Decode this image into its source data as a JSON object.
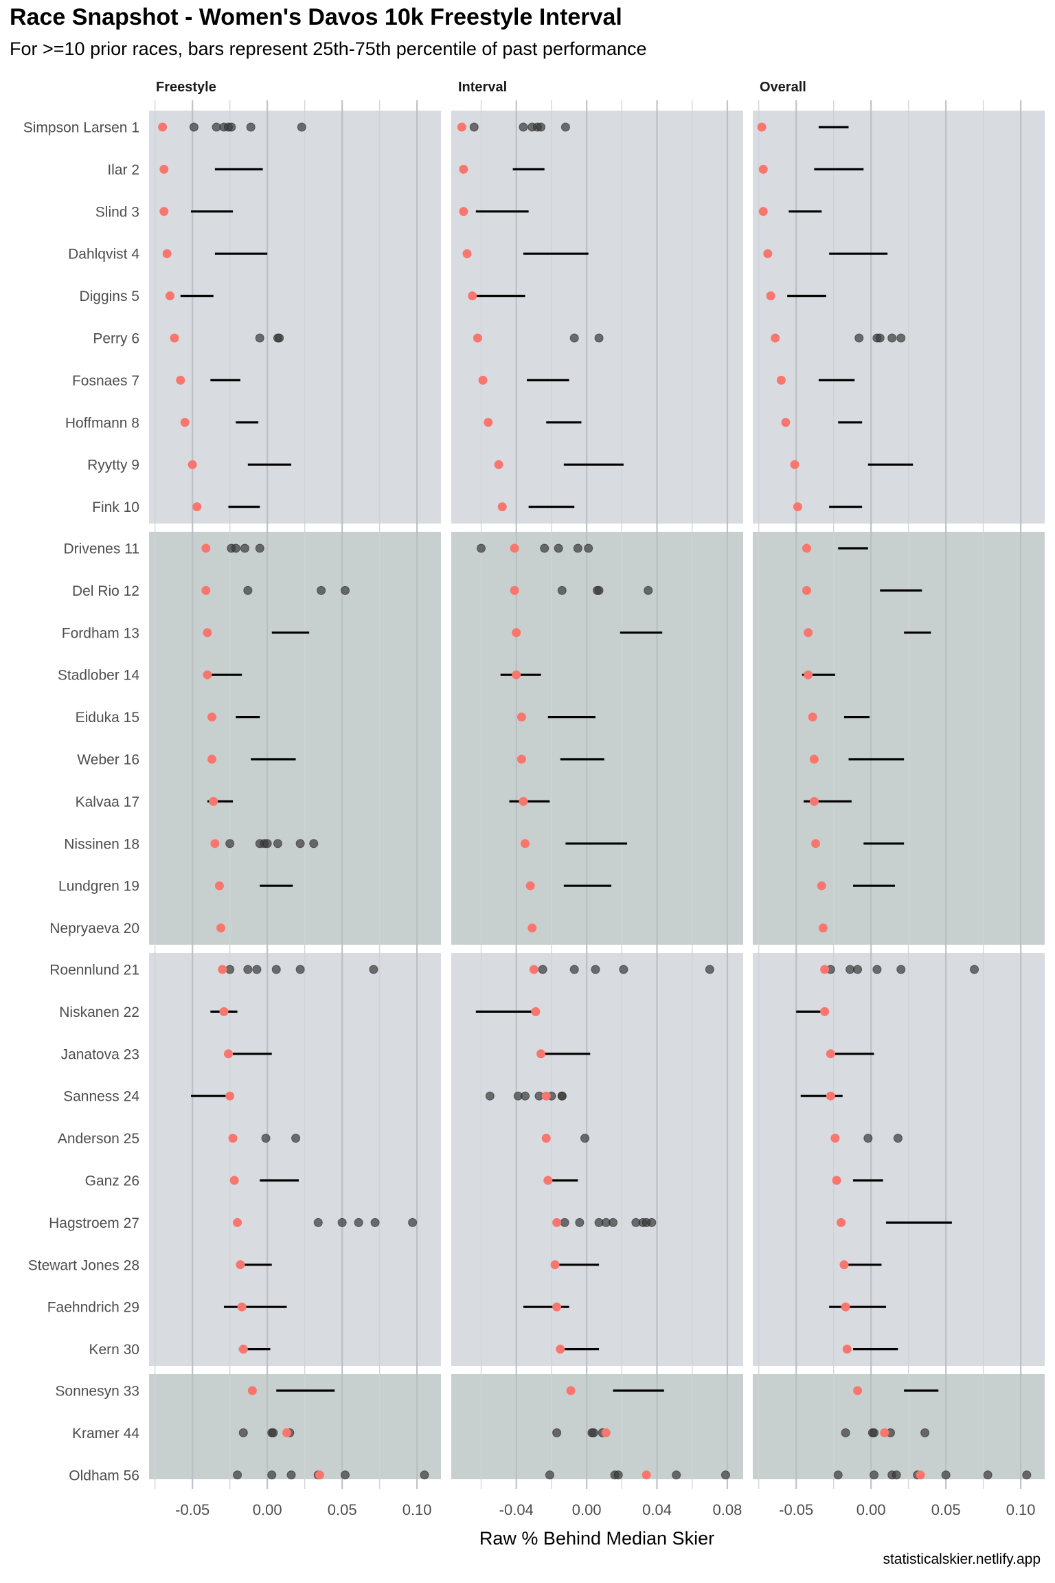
{
  "chart_data": {
    "type": "scatter",
    "title": "Race Snapshot -  Women's Davos 10k Freestyle Interval",
    "subtitle": "For >=10 prior races, bars represent 25th-75th percentile of past performance",
    "xlabel": "Raw % Behind Median Skier",
    "caption": "statisticalskier.netlify.app",
    "colors": {
      "current_point": "#F8766D",
      "past_point": "#3b3b3b",
      "iqr_bar": "#000000",
      "band_light": "#d8dbe0",
      "band_dark": "#c8d0cf"
    },
    "panels": [
      {
        "key": "freestyle",
        "label": "Freestyle",
        "xlim": [
          -0.079,
          0.116
        ],
        "ticks": [
          -0.05,
          0.0,
          0.05,
          0.1
        ],
        "tick_labels": [
          "-0.05",
          "0.00",
          "0.05",
          "0.10"
        ]
      },
      {
        "key": "interval",
        "label": "Interval",
        "xlim": [
          -0.077,
          0.089
        ],
        "ticks": [
          -0.04,
          0.0,
          0.04,
          0.08
        ],
        "tick_labels": [
          "-0.04",
          "0.00",
          "0.04",
          "0.08"
        ]
      },
      {
        "key": "overall",
        "label": "Overall",
        "xlim": [
          -0.079,
          0.116
        ],
        "ticks": [
          -0.05,
          0.0,
          0.05,
          0.1
        ],
        "tick_labels": [
          "-0.05",
          "0.00",
          "0.05",
          "0.10"
        ]
      }
    ],
    "groups": [
      {
        "shade": "light",
        "rows": [
          0,
          1,
          2,
          3,
          4,
          5,
          6,
          7,
          8,
          9
        ]
      },
      {
        "shade": "dark",
        "rows": [
          10,
          11,
          12,
          13,
          14,
          15,
          16,
          17,
          18,
          19
        ]
      },
      {
        "shade": "light",
        "rows": [
          20,
          21,
          22,
          23,
          24,
          25,
          26,
          27,
          28,
          29
        ]
      },
      {
        "shade": "dark",
        "rows": [
          30,
          31,
          32
        ]
      }
    ],
    "skiers": [
      {
        "label": "Simpson Larsen 1",
        "freestyle": {
          "current": -0.07,
          "past": [
            -0.049,
            -0.034,
            -0.029,
            -0.026,
            -0.024,
            -0.011,
            0.023
          ]
        },
        "interval": {
          "current": -0.071,
          "past": [
            -0.064,
            -0.036,
            -0.031,
            -0.028,
            -0.026,
            -0.012
          ]
        },
        "overall": {
          "current": -0.073,
          "iqr": [
            -0.035,
            -0.015
          ]
        }
      },
      {
        "label": "Ilar 2",
        "freestyle": {
          "current": -0.069,
          "iqr": [
            -0.035,
            -0.003
          ]
        },
        "interval": {
          "current": -0.07,
          "iqr": [
            -0.042,
            -0.024
          ]
        },
        "overall": {
          "current": -0.072,
          "iqr": [
            -0.038,
            -0.005
          ]
        }
      },
      {
        "label": "Slind 3",
        "freestyle": {
          "current": -0.069,
          "iqr": [
            -0.051,
            -0.023
          ]
        },
        "interval": {
          "current": -0.07,
          "iqr": [
            -0.063,
            -0.033
          ]
        },
        "overall": {
          "current": -0.072,
          "iqr": [
            -0.055,
            -0.033
          ]
        }
      },
      {
        "label": "Dahlqvist 4",
        "freestyle": {
          "current": -0.067,
          "iqr": [
            -0.035,
            0.0
          ]
        },
        "interval": {
          "current": -0.068,
          "iqr": [
            -0.036,
            0.001
          ]
        },
        "overall": {
          "current": -0.069,
          "iqr": [
            -0.028,
            0.011
          ]
        }
      },
      {
        "label": "Diggins 5",
        "freestyle": {
          "current": -0.065,
          "iqr": [
            -0.058,
            -0.036
          ]
        },
        "interval": {
          "current": -0.065,
          "iqr": [
            -0.063,
            -0.035
          ]
        },
        "overall": {
          "current": -0.067,
          "iqr": [
            -0.056,
            -0.03
          ]
        }
      },
      {
        "label": "Perry 6",
        "freestyle": {
          "current": -0.062,
          "past": [
            -0.005,
            0.007,
            0.008
          ]
        },
        "interval": {
          "current": -0.062,
          "past": [
            -0.007,
            0.007
          ]
        },
        "overall": {
          "current": -0.064,
          "past": [
            -0.008,
            0.004,
            0.006,
            0.014,
            0.02
          ]
        }
      },
      {
        "label": "Fosnaes 7",
        "freestyle": {
          "current": -0.058,
          "iqr": [
            -0.038,
            -0.018
          ]
        },
        "interval": {
          "current": -0.059,
          "iqr": [
            -0.034,
            -0.01
          ]
        },
        "overall": {
          "current": -0.06,
          "iqr": [
            -0.035,
            -0.011
          ]
        }
      },
      {
        "label": "Hoffmann 8",
        "freestyle": {
          "current": -0.055,
          "iqr": [
            -0.021,
            -0.006
          ]
        },
        "interval": {
          "current": -0.056,
          "iqr": [
            -0.023,
            -0.003
          ]
        },
        "overall": {
          "current": -0.057,
          "iqr": [
            -0.022,
            -0.006
          ]
        }
      },
      {
        "label": "Ryytty 9",
        "freestyle": {
          "current": -0.05,
          "iqr": [
            -0.013,
            0.016
          ]
        },
        "interval": {
          "current": -0.05,
          "iqr": [
            -0.013,
            0.021
          ]
        },
        "overall": {
          "current": -0.051,
          "iqr": [
            -0.002,
            0.028
          ]
        }
      },
      {
        "label": "Fink 10",
        "freestyle": {
          "current": -0.047,
          "iqr": [
            -0.026,
            -0.005
          ]
        },
        "interval": {
          "current": -0.048,
          "iqr": [
            -0.033,
            -0.007
          ]
        },
        "overall": {
          "current": -0.049,
          "iqr": [
            -0.028,
            -0.006
          ]
        }
      },
      {
        "label": "Drivenes 11",
        "freestyle": {
          "current": -0.041,
          "past": [
            -0.024,
            -0.021,
            -0.015,
            -0.005
          ]
        },
        "interval": {
          "current": -0.041,
          "past": [
            -0.06,
            -0.024,
            -0.016,
            -0.005,
            0.001
          ]
        },
        "overall": {
          "current": -0.043,
          "iqr": [
            -0.022,
            -0.002
          ]
        }
      },
      {
        "label": "Del Rio 12",
        "freestyle": {
          "current": -0.041,
          "past": [
            -0.013,
            0.036,
            0.052
          ]
        },
        "interval": {
          "current": -0.041,
          "past": [
            -0.014,
            0.006,
            0.007,
            0.035
          ]
        },
        "overall": {
          "current": -0.043,
          "iqr": [
            0.006,
            0.034
          ]
        }
      },
      {
        "label": "Fordham 13",
        "freestyle": {
          "current": -0.04,
          "iqr": [
            0.003,
            0.028
          ]
        },
        "interval": {
          "current": -0.04,
          "iqr": [
            0.019,
            0.043
          ]
        },
        "overall": {
          "current": -0.042,
          "iqr": [
            0.022,
            0.04
          ]
        }
      },
      {
        "label": "Stadlober 14",
        "freestyle": {
          "current": -0.04,
          "iqr": [
            -0.039,
            -0.017
          ]
        },
        "interval": {
          "current": -0.04,
          "iqr": [
            -0.049,
            -0.026
          ]
        },
        "overall": {
          "current": -0.042,
          "iqr": [
            -0.046,
            -0.024
          ]
        }
      },
      {
        "label": "Eiduka 15",
        "freestyle": {
          "current": -0.037,
          "iqr": [
            -0.021,
            -0.005
          ]
        },
        "interval": {
          "current": -0.037,
          "iqr": [
            -0.022,
            0.005
          ]
        },
        "overall": {
          "current": -0.039,
          "iqr": [
            -0.018,
            -0.001
          ]
        }
      },
      {
        "label": "Weber 16",
        "freestyle": {
          "current": -0.037,
          "iqr": [
            -0.011,
            0.019
          ]
        },
        "interval": {
          "current": -0.037,
          "iqr": [
            -0.015,
            0.01
          ]
        },
        "overall": {
          "current": -0.038,
          "iqr": [
            -0.015,
            0.022
          ]
        }
      },
      {
        "label": "Kalvaa 17",
        "freestyle": {
          "current": -0.036,
          "iqr": [
            -0.04,
            -0.023
          ]
        },
        "interval": {
          "current": -0.036,
          "iqr": [
            -0.044,
            -0.021
          ]
        },
        "overall": {
          "current": -0.038,
          "iqr": [
            -0.045,
            -0.013
          ]
        }
      },
      {
        "label": "Nissinen 18",
        "freestyle": {
          "current": -0.035,
          "past": [
            -0.025,
            -0.005,
            -0.002,
            0.0,
            0.007,
            0.022,
            0.031
          ]
        },
        "interval": {
          "current": -0.035,
          "iqr": [
            -0.012,
            0.023
          ]
        },
        "overall": {
          "current": -0.037,
          "iqr": [
            -0.005,
            0.022
          ]
        }
      },
      {
        "label": "Lundgren 19",
        "freestyle": {
          "current": -0.032,
          "iqr": [
            -0.005,
            0.017
          ]
        },
        "interval": {
          "current": -0.032,
          "iqr": [
            -0.013,
            0.014
          ]
        },
        "overall": {
          "current": -0.033,
          "iqr": [
            -0.012,
            0.016
          ]
        }
      },
      {
        "label": "Nepryaeva 20",
        "freestyle": {
          "current": -0.031
        },
        "interval": {
          "current": -0.031
        },
        "overall": {
          "current": -0.032
        }
      },
      {
        "label": "Roennlund 21",
        "freestyle": {
          "current": -0.03,
          "past": [
            -0.025,
            -0.013,
            -0.007,
            0.006,
            0.022,
            0.071
          ]
        },
        "interval": {
          "current": -0.03,
          "past": [
            -0.025,
            -0.007,
            0.005,
            0.021,
            0.07
          ]
        },
        "overall": {
          "current": -0.031,
          "past": [
            -0.027,
            -0.014,
            -0.009,
            0.004,
            0.02,
            0.069
          ]
        }
      },
      {
        "label": "Niskanen 22",
        "freestyle": {
          "current": -0.029,
          "iqr": [
            -0.038,
            -0.02
          ]
        },
        "interval": {
          "current": -0.029,
          "iqr": [
            -0.063,
            -0.031
          ]
        },
        "overall": {
          "current": -0.031,
          "iqr": [
            -0.05,
            -0.03
          ]
        }
      },
      {
        "label": "Janatova 23",
        "freestyle": {
          "current": -0.026,
          "iqr": [
            -0.025,
            0.003
          ]
        },
        "interval": {
          "current": -0.026,
          "iqr": [
            -0.024,
            0.002
          ]
        },
        "overall": {
          "current": -0.027,
          "iqr": [
            -0.024,
            0.002
          ]
        }
      },
      {
        "label": "Sanness 24",
        "freestyle": {
          "current": -0.025,
          "iqr": [
            -0.051,
            -0.025
          ]
        },
        "interval": {
          "current": -0.023,
          "past": [
            -0.055,
            -0.039,
            -0.035,
            -0.027,
            -0.02,
            -0.014,
            -0.014
          ]
        },
        "overall": {
          "current": -0.027,
          "iqr": [
            -0.047,
            -0.019
          ]
        }
      },
      {
        "label": "Anderson 25",
        "freestyle": {
          "current": -0.023,
          "past": [
            -0.001,
            0.019
          ]
        },
        "interval": {
          "current": -0.023,
          "past": [
            -0.001
          ]
        },
        "overall": {
          "current": -0.024,
          "past": [
            -0.002,
            0.018
          ]
        }
      },
      {
        "label": "Ganz 26",
        "freestyle": {
          "current": -0.022,
          "iqr": [
            -0.005,
            0.021
          ]
        },
        "interval": {
          "current": -0.022,
          "iqr": [
            -0.021,
            -0.005
          ]
        },
        "overall": {
          "current": -0.023,
          "iqr": [
            -0.012,
            0.008
          ]
        }
      },
      {
        "label": "Hagstroem 27",
        "freestyle": {
          "current": -0.02,
          "past": [
            0.034,
            0.05,
            0.061,
            0.072,
            0.097
          ]
        },
        "interval": {
          "current": -0.017,
          "past": [
            -0.0125,
            -0.004,
            0.007,
            0.011,
            0.015,
            0.028,
            0.032,
            0.034,
            0.037
          ]
        },
        "overall": {
          "current": -0.02,
          "iqr": [
            0.01,
            0.054
          ]
        }
      },
      {
        "label": "Stewart Jones 28",
        "freestyle": {
          "current": -0.018,
          "iqr": [
            -0.017,
            0.003
          ]
        },
        "interval": {
          "current": -0.018,
          "iqr": [
            -0.016,
            0.007
          ]
        },
        "overall": {
          "current": -0.018,
          "iqr": [
            -0.016,
            0.007
          ]
        }
      },
      {
        "label": "Faehndrich 29",
        "freestyle": {
          "current": -0.017,
          "iqr": [
            -0.029,
            0.013
          ]
        },
        "interval": {
          "current": -0.017,
          "iqr": [
            -0.036,
            -0.01
          ]
        },
        "overall": {
          "current": -0.017,
          "iqr": [
            -0.028,
            0.01
          ]
        }
      },
      {
        "label": "Kern 30",
        "freestyle": {
          "current": -0.016,
          "iqr": [
            -0.019,
            0.002
          ]
        },
        "interval": {
          "current": -0.015,
          "iqr": [
            -0.013,
            0.007
          ]
        },
        "overall": {
          "current": -0.016,
          "iqr": [
            -0.012,
            0.018
          ]
        }
      },
      {
        "label": "Sonnesyn 33",
        "freestyle": {
          "current": -0.01,
          "iqr": [
            0.006,
            0.045
          ]
        },
        "interval": {
          "current": -0.009,
          "iqr": [
            0.015,
            0.044
          ]
        },
        "overall": {
          "current": -0.009,
          "iqr": [
            0.022,
            0.045
          ]
        }
      },
      {
        "label": "Kramer 44",
        "freestyle": {
          "current": 0.013,
          "past": [
            -0.016,
            0.003,
            0.004,
            0.015
          ]
        },
        "interval": {
          "current": 0.011,
          "past": [
            -0.017,
            0.003,
            0.004,
            0.009
          ]
        },
        "overall": {
          "current": 0.009,
          "past": [
            -0.017,
            0.001,
            0.002,
            0.013,
            0.036
          ]
        }
      },
      {
        "label": "Oldham 56",
        "freestyle": {
          "current": 0.035,
          "past": [
            -0.02,
            0.003,
            0.016,
            0.034,
            0.052,
            0.105
          ]
        },
        "interval": {
          "current": 0.034,
          "past": [
            -0.021,
            0.016,
            0.018,
            0.051,
            0.079
          ]
        },
        "overall": {
          "current": 0.033,
          "past": [
            -0.022,
            0.002,
            0.014,
            0.017,
            0.031,
            0.05,
            0.078,
            0.104
          ]
        }
      }
    ]
  }
}
